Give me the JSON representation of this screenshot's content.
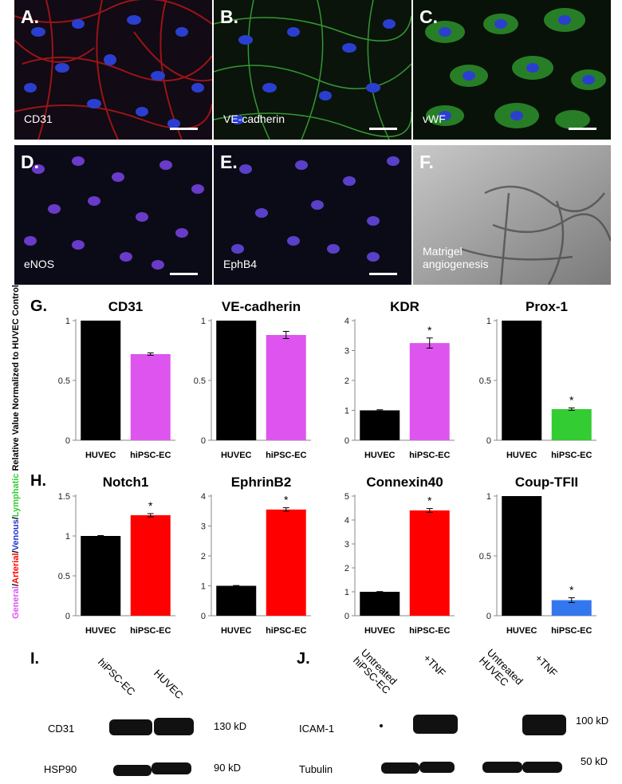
{
  "panels": [
    {
      "letter": "A.",
      "stain": "CD31",
      "color": "#c41a1a"
    },
    {
      "letter": "B.",
      "stain": "VE-cadherin",
      "color": "#2ca82c"
    },
    {
      "letter": "C.",
      "stain": "vWF",
      "color": "#2ca82c"
    },
    {
      "letter": "D.",
      "stain": "eNOS",
      "color": "#c020a0"
    },
    {
      "letter": "E.",
      "stain": "EphB4",
      "color": "#c020a0"
    },
    {
      "letter": "F.",
      "stain": "Matrigel angiogenesis",
      "color": "#888888"
    }
  ],
  "section_g": "G.",
  "section_h": "H.",
  "y_axis": {
    "general": "General",
    "sep1": "/",
    "arterial": "Arterial",
    "sep2": "/",
    "venous": "Venous",
    "sep3": "/",
    "lymphatic": "Lymphatic",
    "rest": " Relative Value Normalized to HUVEC Control"
  },
  "chart_data": [
    {
      "type": "bar",
      "title": "CD31",
      "categories": [
        "HUVEC",
        "hiPSC-EC"
      ],
      "values": [
        1,
        0.72
      ],
      "errors": [
        0,
        0.01
      ],
      "colors": [
        "#000000",
        "#dd55ee"
      ],
      "ylim": [
        0,
        1
      ],
      "yticks": [
        "0",
        "0.5",
        "1"
      ],
      "star": [
        false,
        false
      ]
    },
    {
      "type": "bar",
      "title": "VE-cadherin",
      "categories": [
        "HUVEC",
        "hiPSC-EC"
      ],
      "values": [
        1,
        0.88
      ],
      "errors": [
        0,
        0.03
      ],
      "colors": [
        "#000000",
        "#dd55ee"
      ],
      "ylim": [
        0,
        1
      ],
      "yticks": [
        "0",
        "0.5",
        "1"
      ],
      "star": [
        false,
        false
      ]
    },
    {
      "type": "bar",
      "title": "KDR",
      "categories": [
        "HUVEC",
        "hiPSC-EC"
      ],
      "values": [
        1,
        3.25
      ],
      "errors": [
        0.02,
        0.17
      ],
      "colors": [
        "#000000",
        "#dd55ee"
      ],
      "ylim": [
        0,
        4
      ],
      "yticks": [
        "0",
        "1",
        "2",
        "3",
        "4"
      ],
      "star": [
        false,
        true
      ]
    },
    {
      "type": "bar",
      "title": "Prox-1",
      "categories": [
        "HUVEC",
        "hiPSC-EC"
      ],
      "values": [
        1,
        0.26
      ],
      "errors": [
        0,
        0.01
      ],
      "colors": [
        "#000000",
        "#33cc33"
      ],
      "ylim": [
        0,
        1
      ],
      "yticks": [
        "0",
        "0.5",
        "1"
      ],
      "star": [
        false,
        true
      ]
    },
    {
      "type": "bar",
      "title": "Notch1",
      "categories": [
        "HUVEC",
        "hiPSC-EC"
      ],
      "values": [
        1,
        1.26
      ],
      "errors": [
        0.005,
        0.02
      ],
      "colors": [
        "#000000",
        "#ff0000"
      ],
      "ylim": [
        0,
        1.5
      ],
      "yticks": [
        "0",
        "0.5",
        "1",
        "1.5"
      ],
      "star": [
        false,
        true
      ]
    },
    {
      "type": "bar",
      "title": "EphrinB2",
      "categories": [
        "HUVEC",
        "hiPSC-EC"
      ],
      "values": [
        1,
        3.55
      ],
      "errors": [
        0.01,
        0.06
      ],
      "colors": [
        "#000000",
        "#ff0000"
      ],
      "ylim": [
        0,
        4
      ],
      "yticks": [
        "0",
        "1",
        "2",
        "3",
        "4"
      ],
      "star": [
        false,
        true
      ]
    },
    {
      "type": "bar",
      "title": "Connexin40",
      "categories": [
        "HUVEC",
        "hiPSC-EC"
      ],
      "values": [
        1,
        4.4
      ],
      "errors": [
        0.01,
        0.08
      ],
      "colors": [
        "#000000",
        "#ff0000"
      ],
      "ylim": [
        0,
        5
      ],
      "yticks": [
        "0",
        "1",
        "2",
        "3",
        "4",
        "5"
      ],
      "star": [
        false,
        true
      ]
    },
    {
      "type": "bar",
      "title": "Coup-TFII",
      "categories": [
        "HUVEC",
        "hiPSC-EC"
      ],
      "values": [
        1,
        0.13
      ],
      "errors": [
        0,
        0.02
      ],
      "colors": [
        "#000000",
        "#3377ee"
      ],
      "ylim": [
        0,
        1
      ],
      "yticks": [
        "0",
        "0.5",
        "1"
      ],
      "star": [
        false,
        true
      ]
    }
  ],
  "star_symbol": "*",
  "blot_i": {
    "letter": "I.",
    "lanes": [
      "hiPSC-EC",
      "HUVEC"
    ],
    "rows": [
      "CD31",
      "HSP90"
    ],
    "sizes": [
      "130 kD",
      "90 kD"
    ]
  },
  "blot_j": {
    "letter": "J.",
    "lanes": [
      "Untreated hiPSC-EC",
      "+TNF",
      "Untreated HUVEC",
      "+TNF"
    ],
    "rows": [
      "ICAM-1",
      "Tubulin"
    ],
    "sizes": [
      "100 kD",
      "50 kD"
    ]
  }
}
